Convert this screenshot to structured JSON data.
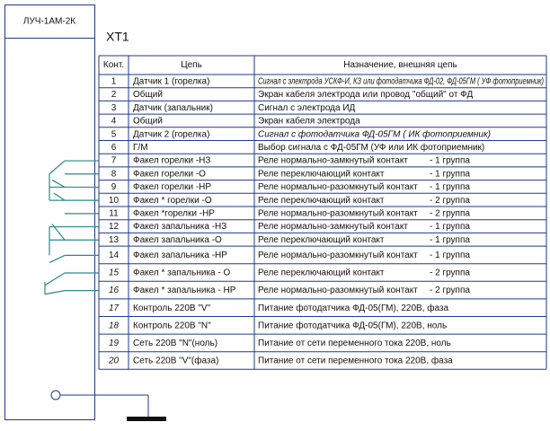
{
  "device": {
    "label": "ЛУЧ-1АМ-2К"
  },
  "connector": {
    "title": "XT1"
  },
  "table": {
    "header": [
      "Конт.",
      "Цепь",
      "Назначение, внешняя цепь"
    ],
    "rows": [
      {
        "contact": "1",
        "circuit": "Датчик 1 (горелка)",
        "purpose": "Сигнал с электрода УСКФ-И, КЗ или фотодатчика ФД-02, ФД-05ГМ ( УФ фотоприемник)"
      },
      {
        "contact": "2",
        "circuit": "Общий",
        "purpose": "Экран кабеля электрода или провод \"общий\" от ФД"
      },
      {
        "contact": "3",
        "circuit": "Датчик (запальник)",
        "purpose": "Сигнал с электрода ИД"
      },
      {
        "contact": "4",
        "circuit": "Общий",
        "purpose": "Экран кабеля электрода"
      },
      {
        "contact": "5",
        "circuit": "Датчик 2 (горелка)",
        "purpose": "Сигнал с фотодатчика ФД-05ГМ ( ИК фотоприемник)"
      },
      {
        "contact": "6",
        "circuit": "Г/М",
        "purpose": "Выбор сигнала с ФД-05ГМ (УФ или ИК фотоприемник)"
      },
      {
        "contact": "7",
        "circuit": "Факел горелки -НЗ",
        "purpose": "Реле нормально-замкнутый контакт",
        "group": "- 1 группа"
      },
      {
        "contact": "8",
        "circuit": "Факел горелки -О",
        "purpose": "Реле переключающий контакт",
        "group": "- 1 группа"
      },
      {
        "contact": "9",
        "circuit": "Факел горелки -НР",
        "purpose": "Реле нормально-разомкнутый контакт",
        "group": "- 1 группа"
      },
      {
        "contact": "10",
        "circuit": "Факел * горелки -О",
        "purpose": "Реле переключающий контакт",
        "group": "- 2 группа"
      },
      {
        "contact": "11",
        "circuit": "Факел *горелки -НР",
        "purpose": "Реле нормально-разомкнутый контакт",
        "group": "- 2 группа"
      },
      {
        "contact": "12",
        "circuit": "Факел запальника -НЗ",
        "purpose": "Реле нормально-замкнутый контакт",
        "group": "- 1 группа"
      },
      {
        "contact": "13",
        "circuit": "Факел запальника -О",
        "purpose": "Реле переключающий контакт",
        "group": "- 1 группа"
      },
      {
        "contact": "14",
        "circuit": "Факел запальника -НР",
        "purpose": "Реле нормально-разомкнутый контакт",
        "group": "- 1 группа"
      },
      {
        "contact": "15",
        "circuit": "Факел * запальника - О",
        "purpose": "Реле переключающий контакт",
        "group": "- 2 группа"
      },
      {
        "contact": "16",
        "circuit": "Факел * запальника - НР",
        "purpose": "Реле нормально-разомкнутый контакт",
        "group": "- 2 группа"
      },
      {
        "contact": "17",
        "circuit": "Контроль 220В \"V\"",
        "purpose": "Питание фотодатчика ФД-05(ГМ), 220В, фаза"
      },
      {
        "contact": "18",
        "circuit": "Контроль 220В \"N\"",
        "purpose": "Питание фотодатчика ФД-05(ГМ), 220В, ноль"
      },
      {
        "contact": "19",
        "circuit": "Сеть 220В \"N\"(ноль)",
        "purpose": "Питание от сети переменного тока 220В, ноль"
      },
      {
        "contact": "20",
        "circuit": "Сеть 220В \"V\"(фаза)",
        "purpose": "Питание от сети переменного тока 220В, фаза"
      }
    ]
  }
}
